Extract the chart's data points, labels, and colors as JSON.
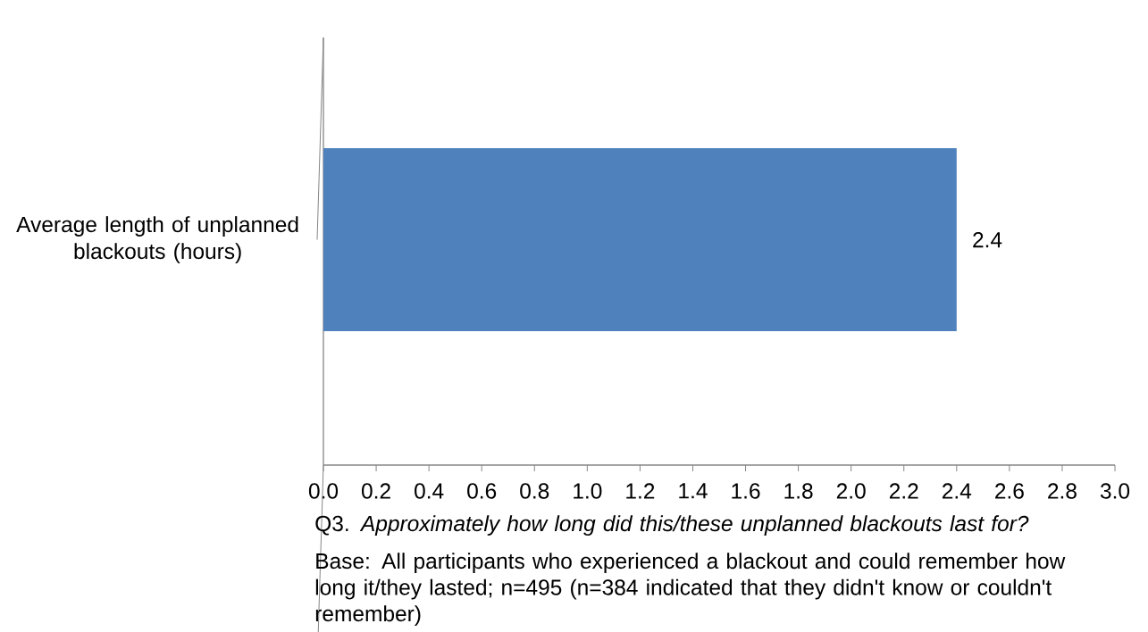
{
  "chart_data": {
    "type": "bar",
    "orientation": "horizontal",
    "categories": [
      "Average length of unplanned blackouts (hours)"
    ],
    "values": [
      2.4
    ],
    "color": "#4f81bd",
    "data_labels": true,
    "xlim": [
      0,
      3
    ],
    "xticks": [
      {
        "value": 0,
        "label": "0.0"
      },
      0.2,
      0.4,
      0.6,
      0.8,
      {
        "value": 1,
        "label": "1.0"
      },
      1.2,
      1.4,
      1.6,
      1.8,
      {
        "value": 2,
        "label": "2.0"
      },
      2.2,
      2.4,
      2.6,
      2.8,
      {
        "value": 3,
        "label": "3.0"
      }
    ],
    "annotations": [
      "Q3. *Approximately how long did this/these unplanned blackouts last for?*",
      "Base: All participants who experienced a blackout and could remember how long it/they lasted; n=495 (n=384 indicated that they didn't know or couldn't remember)"
    ]
  }
}
